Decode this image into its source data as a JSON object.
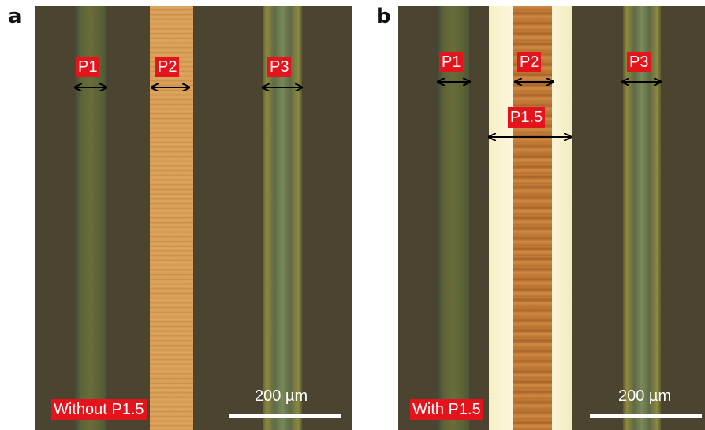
{
  "panels": [
    {
      "label": "a",
      "markers": [
        "P1",
        "P2",
        "P3"
      ],
      "caption": "Without P1.5",
      "scale_bar": "200 µm"
    },
    {
      "label": "b",
      "markers": [
        "P1",
        "P2",
        "P3",
        "P1.5"
      ],
      "caption": "With P1.5",
      "scale_bar": "200 µm"
    }
  ]
}
